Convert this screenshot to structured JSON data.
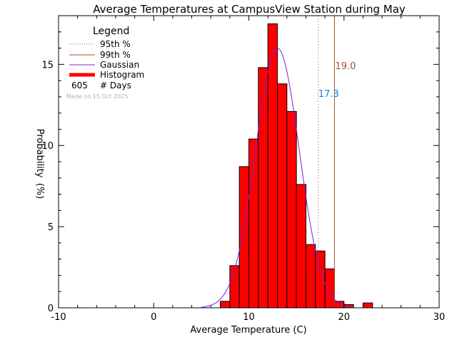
{
  "chart_data": {
    "type": "bar",
    "title": "Average Temperatures at CampusView Station during May",
    "xlabel": "Average Temperature (C)",
    "ylabel_top": "Probability",
    "ylabel_bottom": "(%)",
    "xlim": [
      -10,
      30
    ],
    "ylim": [
      0,
      18
    ],
    "xticks": [
      -10,
      0,
      10,
      20,
      30
    ],
    "yticks": [
      0,
      5,
      10,
      15
    ],
    "bin_width": 1,
    "bins": [
      {
        "x0": 7,
        "x1": 8,
        "value": 0.4
      },
      {
        "x0": 8,
        "x1": 9,
        "value": 2.6
      },
      {
        "x0": 9,
        "x1": 10,
        "value": 8.7
      },
      {
        "x0": 10,
        "x1": 11,
        "value": 10.4
      },
      {
        "x0": 11,
        "x1": 12,
        "value": 14.8
      },
      {
        "x0": 12,
        "x1": 13,
        "value": 17.5
      },
      {
        "x0": 13,
        "x1": 14,
        "value": 13.8
      },
      {
        "x0": 14,
        "x1": 15,
        "value": 12.1
      },
      {
        "x0": 15,
        "x1": 16,
        "value": 7.6
      },
      {
        "x0": 16,
        "x1": 17,
        "value": 3.9
      },
      {
        "x0": 17,
        "x1": 18,
        "value": 3.5
      },
      {
        "x0": 18,
        "x1": 19,
        "value": 2.4
      },
      {
        "x0": 19,
        "x1": 20,
        "value": 0.4
      },
      {
        "x0": 20,
        "x1": 21,
        "value": 0.2
      },
      {
        "x0": 22,
        "x1": 23,
        "value": 0.3
      }
    ],
    "gaussian": {
      "mean": 13.0,
      "sigma": 2.3,
      "peak": 16.0,
      "x_range": [
        5,
        21
      ]
    },
    "percentile_95": {
      "value": 17.3,
      "label": "17.3",
      "color": "#1a7fd4"
    },
    "percentile_99": {
      "value": 19.0,
      "label": "19.0",
      "color": "#a0522d"
    },
    "legend": {
      "title": "Legend",
      "placement": "top-left",
      "entries": [
        {
          "name": "95th %",
          "color": "#1a7fd4",
          "style": "dotted"
        },
        {
          "name": "99th %",
          "color": "#a0522d",
          "style": "solid"
        },
        {
          "name": "Gaussian",
          "color": "#7b1fd6",
          "style": "solid"
        },
        {
          "name": "Histogram",
          "color": "#ff0000",
          "style": "thick"
        }
      ],
      "days_count": "605",
      "days_label": "# Days",
      "made_on": "Made on 15 Oct 2025"
    },
    "colors": {
      "bar_fill": "#ff0000",
      "bar_edge": "#000000",
      "axis": "#000000"
    }
  }
}
